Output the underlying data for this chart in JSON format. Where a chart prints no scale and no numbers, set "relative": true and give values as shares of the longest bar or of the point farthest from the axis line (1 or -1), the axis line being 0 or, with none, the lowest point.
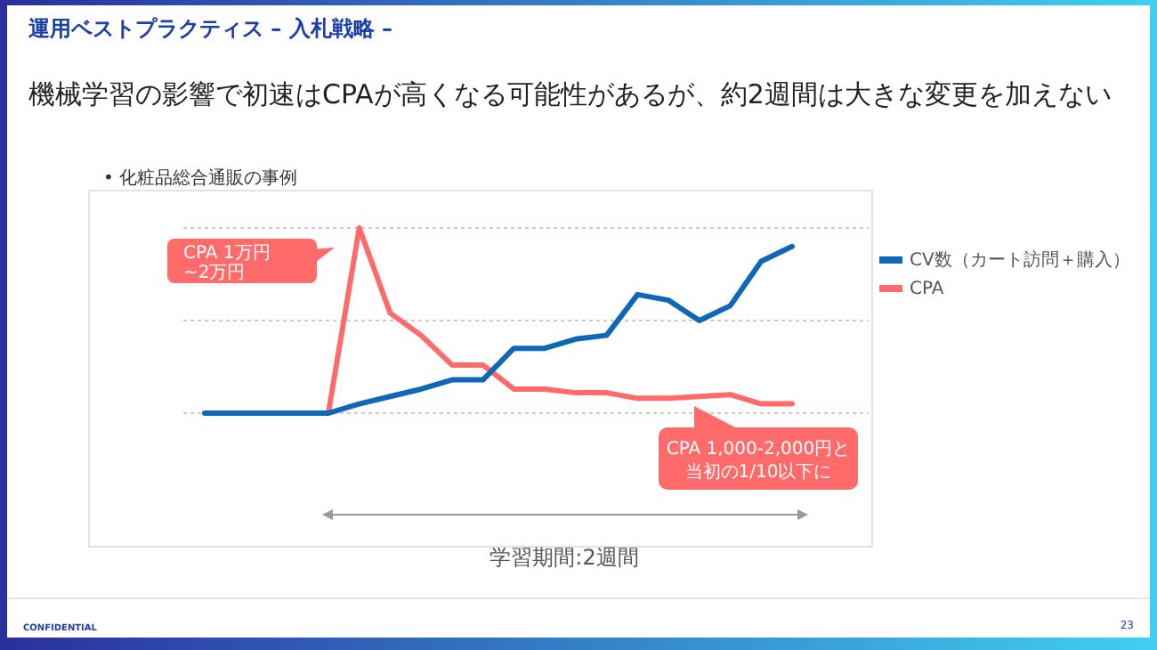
{
  "chart_data": {
    "type": "line",
    "title": "運用ベストプラクティス – 入札戦略 –",
    "subtitle": "機械学習の影響で初速はCPAが高くなる可能性があるが、約2週間は大きな変更を加えない",
    "categories": [
      null,
      null,
      null,
      null,
      null,
      null,
      null,
      null,
      null,
      null,
      null,
      null,
      null,
      null,
      null,
      null,
      null,
      null,
      null,
      null
    ],
    "relative": true,
    "series": [
      {
        "name": "CV数（カート訪問＋購入）",
        "color": "#0f67b8",
        "values": [
          0,
          0,
          0,
          0,
          0,
          0.05,
          0.09,
          0.13,
          0.18,
          0.18,
          0.35,
          0.35,
          0.4,
          0.42,
          0.64,
          0.61,
          0.5,
          0.58,
          0.82,
          0.9
        ]
      },
      {
        "name": "CPA",
        "color": "#ff6b6b",
        "values": [
          null,
          null,
          null,
          null,
          0,
          1.0,
          0.54,
          0.42,
          0.26,
          0.26,
          0.13,
          0.13,
          0.11,
          0.11,
          0.08,
          0.08,
          0.09,
          0.1,
          0.05,
          0.05
        ]
      }
    ],
    "ref_lines": [
      {
        "axis": "y",
        "value": 0,
        "color": "#bbbbbb",
        "line_style": "dotted"
      },
      {
        "axis": "y",
        "value": 0.5,
        "color": "#bbbbbb",
        "line_style": "dotted"
      },
      {
        "axis": "y",
        "value": 1,
        "color": "#bbbbbb",
        "line_style": "dotted"
      }
    ],
    "legend": "right",
    "annotations": [
      "•  化粧品総合通販の事例",
      "CPA 1万円~2万円",
      "CPA 1,000-2,000円と当初の1/10以下に",
      "学習期間:2週間",
      "CONFIDENTIAL",
      "23"
    ]
  }
}
